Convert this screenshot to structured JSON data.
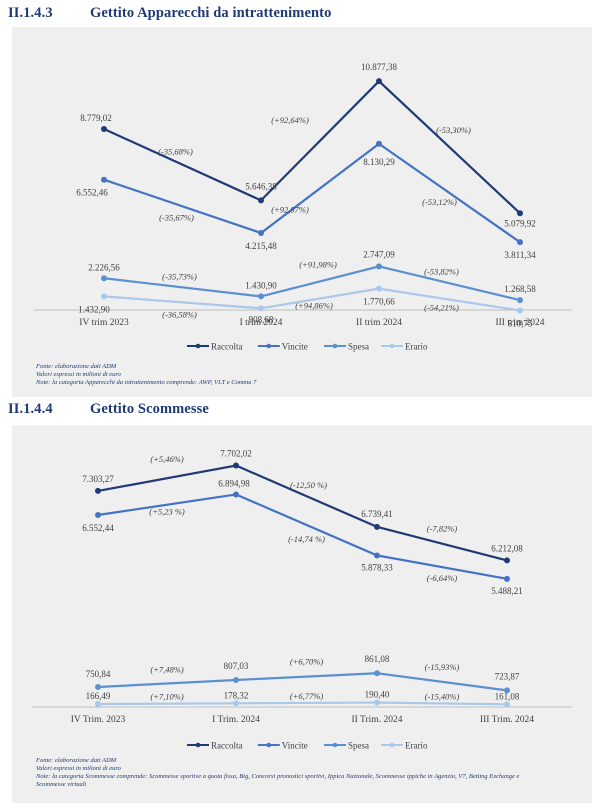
{
  "sections": [
    {
      "number": "II.1.4.3",
      "title": "Gettito Apparecchi da intrattenimento"
    },
    {
      "number": "II.1.4.4",
      "title": "Gettito Scommesse"
    }
  ],
  "notes1": [
    "Fonte: elaborazione dati ADM",
    "Valori espressi in milioni di euro",
    "Note: la categoria Apparecchi da intrattenimento comprende: AWP, VLT e Comma 7"
  ],
  "notes2": [
    "Fonte: elaborazione dati ADM",
    "Valori espressi in milioni di euro",
    "Note: la categoria Scommesse comprende: Scommesse sportive a quota fissa, Big, Concorsi pronostici sportivi, Ippica Nazionale, Scommesse ippiche in Agenzia, V7, Betting Exchange e",
    "Scommesse virtuali"
  ],
  "colors": {
    "raccolta": "#1f3a75",
    "vincite": "#4472c4",
    "spesa": "#5b8fd0",
    "erario": "#a9c8ea"
  },
  "chart_data": [
    {
      "type": "line",
      "title": "Gettito Apparecchi da intrattenimento",
      "categories": [
        "IV trim 2023",
        "I trim 2024",
        "II trim 2024",
        "III trim 2024"
      ],
      "ylim": [
        0,
        11500
      ],
      "legend": "bottom-center",
      "series": [
        {
          "name": "Raccolta",
          "color": "#1f3a75",
          "values": [
            8779.02,
            5646.38,
            10877.38,
            5079.92
          ],
          "labels": [
            "8.779,02",
            "5.646,38",
            "10.877,38",
            "5.079,92"
          ],
          "changes": [
            "(-35,68%)",
            "(+92,64%)",
            "(-53,30%)"
          ]
        },
        {
          "name": "Vincite",
          "color": "#4472c4",
          "values": [
            6552.46,
            4215.48,
            8130.29,
            3811.34
          ],
          "labels": [
            "6.552,46",
            "4.215,48",
            "8.130,29",
            "3.811,34"
          ],
          "changes": [
            "(-35,67%)",
            "(+92,87%)",
            "(-53,12%)"
          ]
        },
        {
          "name": "Spesa",
          "color": "#5b8fd0",
          "values": [
            2226.56,
            1430.9,
            2747.09,
            1268.58
          ],
          "labels": [
            "2.226,56",
            "1.430,90",
            "2.747,09",
            "1.268,58"
          ],
          "changes": [
            "(-35,73%)",
            "(+91,98%)",
            "(-53,82%)"
          ]
        },
        {
          "name": "Erario",
          "color": "#a9c8ea",
          "values": [
            1432.9,
            908.68,
            1770.66,
            810.75
          ],
          "labels": [
            "1.432,90",
            "908,68",
            "1.770,66",
            "810,75"
          ],
          "changes": [
            "(-36,58%)",
            "(+94,86%)",
            "(-54,21%)"
          ]
        }
      ]
    },
    {
      "type": "line",
      "title": "Gettito Scommesse",
      "categories": [
        "IV Trim. 2023",
        "I Trim. 2024",
        "II Trim. 2024",
        "III Trim. 2024"
      ],
      "legend": "bottom-center",
      "series": [
        {
          "name": "Raccolta",
          "color": "#1f3a75",
          "values": [
            7303.27,
            7702.02,
            6739.41,
            6212.08
          ],
          "labels": [
            "7.303,27",
            "7.702,02",
            "6.739,41",
            "6.212,08"
          ],
          "changes": [
            "(+5,46%)",
            "(-12,50 %)",
            "(-7,82%)"
          ]
        },
        {
          "name": "Vincite",
          "color": "#4472c4",
          "values": [
            6552.44,
            6894.98,
            5878.33,
            5488.21
          ],
          "labels": [
            "6.552,44",
            "6.894,98",
            "5.878,33",
            "5.488,21"
          ],
          "changes": [
            "(+5,23 %)",
            "(-14,74 %)",
            "(-6,64%)"
          ]
        },
        {
          "name": "Spesa",
          "color": "#5b8fd0",
          "values": [
            750.84,
            807.03,
            861.08,
            723.87
          ],
          "labels": [
            "750,84",
            "807,03",
            "861,08",
            "723,87"
          ],
          "changes": [
            "(+7,48%)",
            "(+6,70%)",
            "(-15,93%)"
          ]
        },
        {
          "name": "Erario",
          "color": "#a9c8ea",
          "values": [
            166.49,
            178.32,
            190.4,
            161.08
          ],
          "labels": [
            "166,49",
            "178,32",
            "190,40",
            "161,08"
          ],
          "changes": [
            "(+7,10%)",
            "(+6,77%)",
            "(-15,40%)"
          ]
        }
      ]
    }
  ]
}
